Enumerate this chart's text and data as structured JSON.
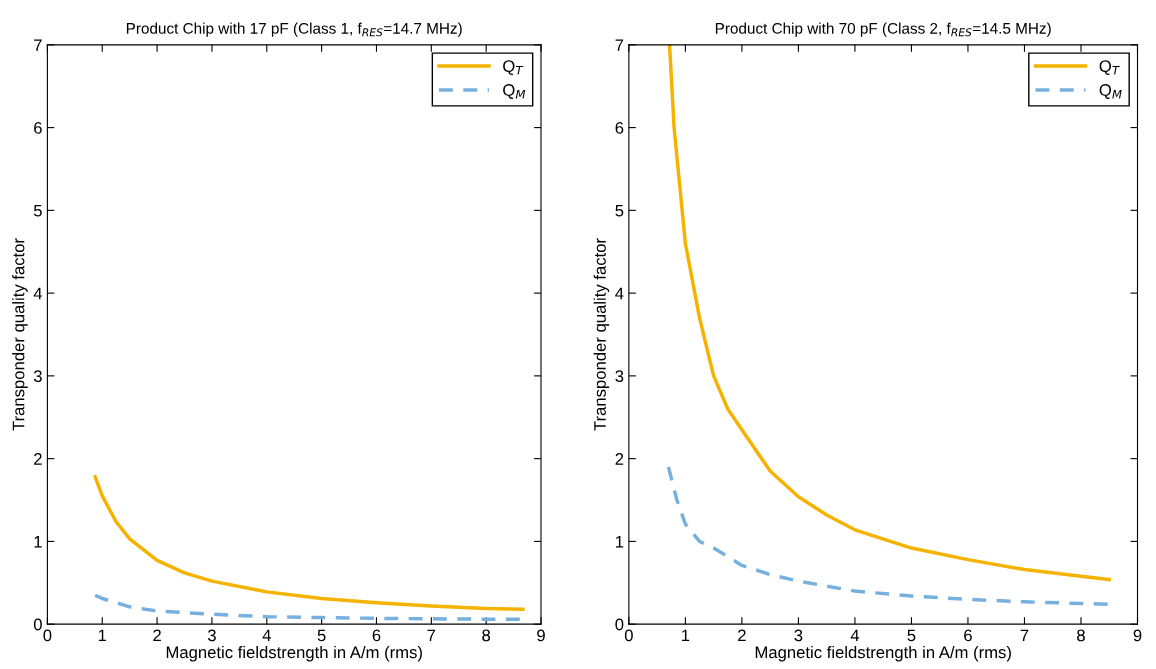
{
  "chart_data": [
    {
      "type": "line",
      "title": "Product Chip with 17 pF (Class 1, f$_{RES}$=14.7 MHz)",
      "xlabel": "Magnetic fieldstrength in A/m (rms)",
      "ylabel": "Transponder quality factor",
      "xlim": [
        0,
        9
      ],
      "ylim": [
        0,
        7
      ],
      "xticks": [
        0,
        1,
        2,
        3,
        4,
        5,
        6,
        7,
        8,
        9
      ],
      "yticks": [
        0,
        1,
        2,
        3,
        4,
        5,
        6,
        7
      ],
      "legend": "top right",
      "grid": false,
      "series": [
        {
          "name": "Q$_{T}$",
          "color": "#f5b300",
          "line_style": "solid",
          "x": [
            0.87,
            1.0,
            1.25,
            1.5,
            2,
            2.5,
            3,
            4,
            5,
            6,
            7,
            8,
            8.67
          ],
          "values": [
            1.78,
            1.55,
            1.24,
            1.03,
            0.77,
            0.62,
            0.52,
            0.39,
            0.31,
            0.26,
            0.22,
            0.19,
            0.18
          ]
        },
        {
          "name": "Q$_{M}$",
          "color": "#77b0de",
          "line_style": "dashed",
          "x": [
            0.87,
            1.0,
            1.5,
            2,
            3,
            4,
            5,
            6,
            7,
            8,
            8.67
          ],
          "values": [
            0.35,
            0.31,
            0.21,
            0.16,
            0.12,
            0.09,
            0.08,
            0.07,
            0.065,
            0.06,
            0.06
          ]
        }
      ]
    },
    {
      "type": "line",
      "title": "Product Chip with 70 pF (Class 2, f$_{RES}$=14.5 MHz)",
      "xlabel": "Magnetic fieldstrength in A/m (rms)",
      "ylabel": "Transponder quality factor",
      "xlim": [
        0,
        9
      ],
      "ylim": [
        0,
        7
      ],
      "xticks": [
        0,
        1,
        2,
        3,
        4,
        5,
        6,
        7,
        8,
        9
      ],
      "yticks": [
        0,
        1,
        2,
        3,
        4,
        5,
        6,
        7
      ],
      "legend": "top right",
      "grid": false,
      "series": [
        {
          "name": "Q$_{T}$",
          "color": "#f5b300",
          "line_style": "solid",
          "x": [
            0.72,
            0.8,
            0.9,
            1.0,
            1.25,
            1.5,
            1.75,
            2,
            2.5,
            3,
            3.5,
            4,
            5,
            6,
            7,
            8,
            8.5
          ],
          "values": [
            7.0,
            6.0,
            5.3,
            4.6,
            3.7,
            3.0,
            2.6,
            2.35,
            1.85,
            1.54,
            1.32,
            1.14,
            0.92,
            0.78,
            0.66,
            0.58,
            0.54
          ]
        },
        {
          "name": "Q$_{M}$",
          "color": "#77b0de",
          "line_style": "dashed",
          "x": [
            0.7,
            0.85,
            1.0,
            1.25,
            1.5,
            2,
            2.5,
            3,
            4,
            5,
            6,
            7,
            8,
            8.5
          ],
          "values": [
            1.9,
            1.5,
            1.21,
            1.0,
            0.92,
            0.71,
            0.6,
            0.52,
            0.4,
            0.34,
            0.3,
            0.27,
            0.25,
            0.24
          ]
        }
      ]
    }
  ]
}
